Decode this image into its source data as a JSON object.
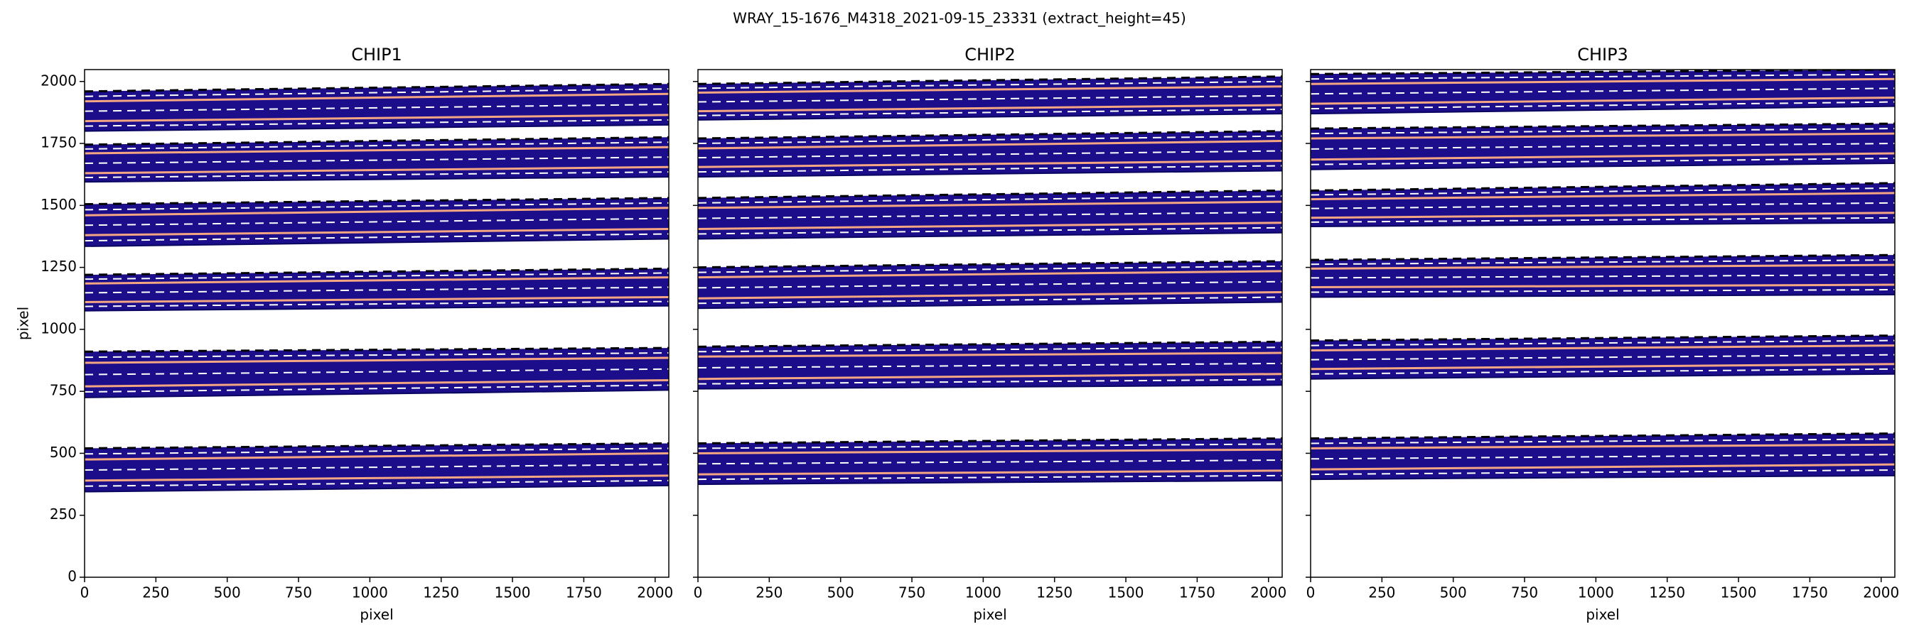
{
  "title": "WRAY_15-1676_M4318_2021-09-15_23331  (extract_height=45)",
  "chart_data": [
    {
      "type": "orders",
      "title": "CHIP1",
      "xlabel": "pixel",
      "ylabel": "pixel",
      "xlim": [
        0,
        2048
      ],
      "ylim": [
        0,
        2048
      ],
      "xticks": [
        0,
        250,
        500,
        750,
        1000,
        1250,
        1500,
        1750,
        2000
      ],
      "yticks": [
        0,
        250,
        500,
        750,
        1000,
        1250,
        1500,
        1750,
        2000
      ],
      "ytick_labels": true,
      "color": "#1c0d8a",
      "trace_color": "#f4a582",
      "orders": [
        {
          "lower": [
            1800,
            1825
          ],
          "upper": [
            1960,
            1990
          ],
          "traces": [
            [
              1840,
              1865
            ],
            [
              1920,
              1950
            ]
          ]
        },
        {
          "lower": [
            1595,
            1615
          ],
          "upper": [
            1745,
            1775
          ],
          "traces": [
            [
              1630,
              1655
            ],
            [
              1710,
              1735
            ]
          ]
        },
        {
          "lower": [
            1335,
            1365
          ],
          "upper": [
            1505,
            1530
          ],
          "traces": [
            [
              1380,
              1405
            ],
            [
              1460,
              1490
            ]
          ]
        },
        {
          "lower": [
            1075,
            1095
          ],
          "upper": [
            1220,
            1245
          ],
          "traces": [
            [
              1110,
              1130
            ],
            [
              1185,
              1210
            ]
          ]
        },
        {
          "lower": [
            725,
            755
          ],
          "upper": [
            910,
            925
          ],
          "traces": [
            [
              770,
              795
            ],
            [
              865,
              885
            ]
          ]
        },
        {
          "lower": [
            345,
            370
          ],
          "upper": [
            520,
            540
          ],
          "traces": [
            [
              390,
              410
            ],
            [
              475,
              500
            ]
          ]
        }
      ]
    },
    {
      "type": "orders",
      "title": "CHIP2",
      "xlabel": "pixel",
      "xlim": [
        0,
        2048
      ],
      "ylim": [
        0,
        2048
      ],
      "xticks": [
        0,
        250,
        500,
        750,
        1000,
        1250,
        1500,
        1750,
        2000
      ],
      "yticks": [
        0,
        250,
        500,
        750,
        1000,
        1250,
        1500,
        1750,
        2000
      ],
      "ytick_labels": false,
      "color": "#1c0d8a",
      "trace_color": "#f4a582",
      "orders": [
        {
          "lower": [
            1845,
            1870
          ],
          "upper": [
            1990,
            2020
          ],
          "traces": [
            [
              1880,
              1905
            ],
            [
              1955,
              1980
            ]
          ]
        },
        {
          "lower": [
            1615,
            1640
          ],
          "upper": [
            1770,
            1800
          ],
          "traces": [
            [
              1655,
              1680
            ],
            [
              1730,
              1760
            ]
          ]
        },
        {
          "lower": [
            1365,
            1390
          ],
          "upper": [
            1530,
            1560
          ],
          "traces": [
            [
              1405,
              1430
            ],
            [
              1490,
              1515
            ]
          ]
        },
        {
          "lower": [
            1085,
            1110
          ],
          "upper": [
            1250,
            1275
          ],
          "traces": [
            [
              1125,
              1150
            ],
            [
              1210,
              1235
            ]
          ]
        },
        {
          "lower": [
            760,
            775
          ],
          "upper": [
            930,
            950
          ],
          "traces": [
            [
              800,
              820
            ],
            [
              890,
              905
            ]
          ]
        },
        {
          "lower": [
            375,
            390
          ],
          "upper": [
            540,
            560
          ],
          "traces": [
            [
              415,
              430
            ],
            [
              500,
              515
            ]
          ]
        }
      ]
    },
    {
      "type": "orders",
      "title": "CHIP3",
      "xlabel": "pixel",
      "xlim": [
        0,
        2048
      ],
      "ylim": [
        0,
        2048
      ],
      "xticks": [
        0,
        250,
        500,
        750,
        1000,
        1250,
        1500,
        1750,
        2000
      ],
      "yticks": [
        0,
        250,
        500,
        750,
        1000,
        1250,
        1500,
        1750,
        2000
      ],
      "ytick_labels": false,
      "color": "#1c0d8a",
      "trace_color": "#f4a582",
      "orders": [
        {
          "lower": [
            1870,
            1900
          ],
          "upper": [
            2030,
            2048
          ],
          "traces": [
            [
              1910,
              1935
            ],
            [
              1990,
              2010
            ]
          ]
        },
        {
          "lower": [
            1645,
            1670
          ],
          "upper": [
            1810,
            1830
          ],
          "traces": [
            [
              1685,
              1710
            ],
            [
              1770,
              1790
            ]
          ]
        },
        {
          "lower": [
            1415,
            1430
          ],
          "upper": [
            1560,
            1590
          ],
          "traces": [
            [
              1450,
              1470
            ],
            [
              1525,
              1550
            ]
          ]
        },
        {
          "lower": [
            1130,
            1140
          ],
          "upper": [
            1280,
            1300
          ],
          "traces": [
            [
              1170,
              1180
            ],
            [
              1245,
              1260
            ]
          ]
        },
        {
          "lower": [
            800,
            820
          ],
          "upper": [
            955,
            975
          ],
          "traces": [
            [
              840,
              860
            ],
            [
              915,
              935
            ]
          ]
        },
        {
          "lower": [
            395,
            410
          ],
          "upper": [
            560,
            580
          ],
          "traces": [
            [
              435,
              455
            ],
            [
              520,
              535
            ]
          ]
        }
      ]
    }
  ]
}
